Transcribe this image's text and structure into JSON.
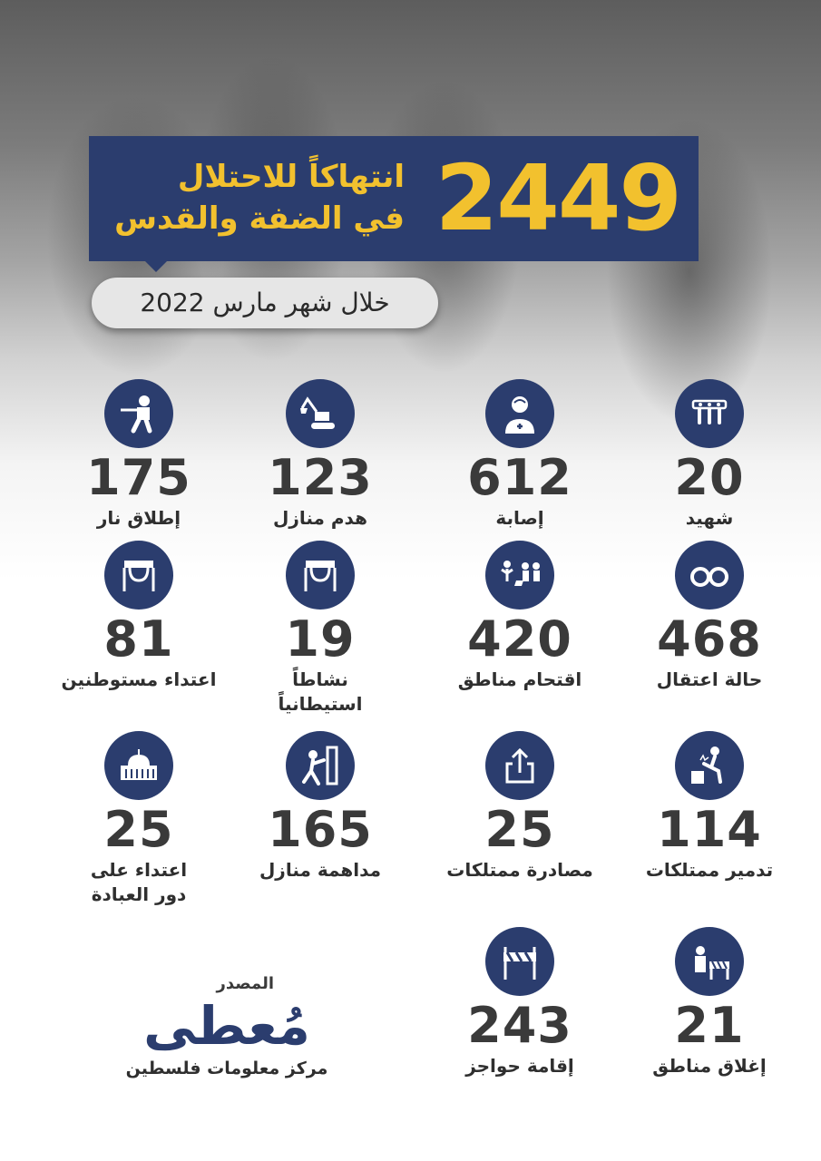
{
  "header": {
    "count": "2449",
    "title_line1": "انتهاكاً للاحتلال",
    "title_line2": "في الضفة والقدس",
    "period": "خلال شهر مارس 2022"
  },
  "stats": [
    {
      "value": "20",
      "label": "شهيد",
      "icon": "martyrs-icon"
    },
    {
      "value": "612",
      "label": "إصابة",
      "icon": "injured-icon"
    },
    {
      "value": "123",
      "label": "هدم منازل",
      "icon": "bulldozer-icon"
    },
    {
      "value": "175",
      "label": "إطلاق نار",
      "icon": "shooting-soldier-icon"
    },
    {
      "value": "468",
      "label": "حالة اعتقال",
      "icon": "handcuffs-icon"
    },
    {
      "value": "420",
      "label": "اقتحام مناطق",
      "icon": "raid-icon"
    },
    {
      "value": "19",
      "label_lines": [
        "نشاطاً",
        "استيطانياً"
      ],
      "icon": "settler-icon"
    },
    {
      "value": "81",
      "label": "اعتداء مستوطنين",
      "icon": "settler-attack-icon"
    },
    {
      "value": "114",
      "label": "تدمير ممتلكات",
      "icon": "destruction-icon"
    },
    {
      "value": "25",
      "label": "مصادرة ممتلكات",
      "icon": "confiscation-icon"
    },
    {
      "value": "165",
      "label": "مداهمة منازل",
      "icon": "house-raid-icon"
    },
    {
      "value": "25",
      "label_lines": [
        "اعتداء على",
        "دور العبادة"
      ],
      "icon": "mosque-icon"
    },
    {
      "value": "21",
      "label": "إغلاق مناطق",
      "icon": "closure-icon"
    },
    {
      "value": "243",
      "label": "إقامة حواجز",
      "icon": "checkpoint-icon"
    }
  ],
  "source": {
    "caption": "المصدر",
    "logo": "مُعطى",
    "org": "مركز معلومات فلسطين"
  },
  "colors": {
    "navy": "#2b3d6e",
    "gold": "#f2c12e",
    "text": "#3a3a3a"
  }
}
